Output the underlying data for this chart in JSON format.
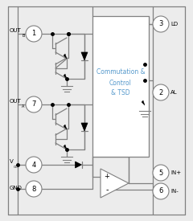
{
  "bg_color": "#ececec",
  "line_color": "#808080",
  "text_color": "#000000",
  "blue_text": "#5599cc",
  "box_text": [
    "Commutation &",
    "Control",
    "& TSD"
  ],
  "figsize": [
    2.4,
    2.75
  ],
  "dpi": 100
}
